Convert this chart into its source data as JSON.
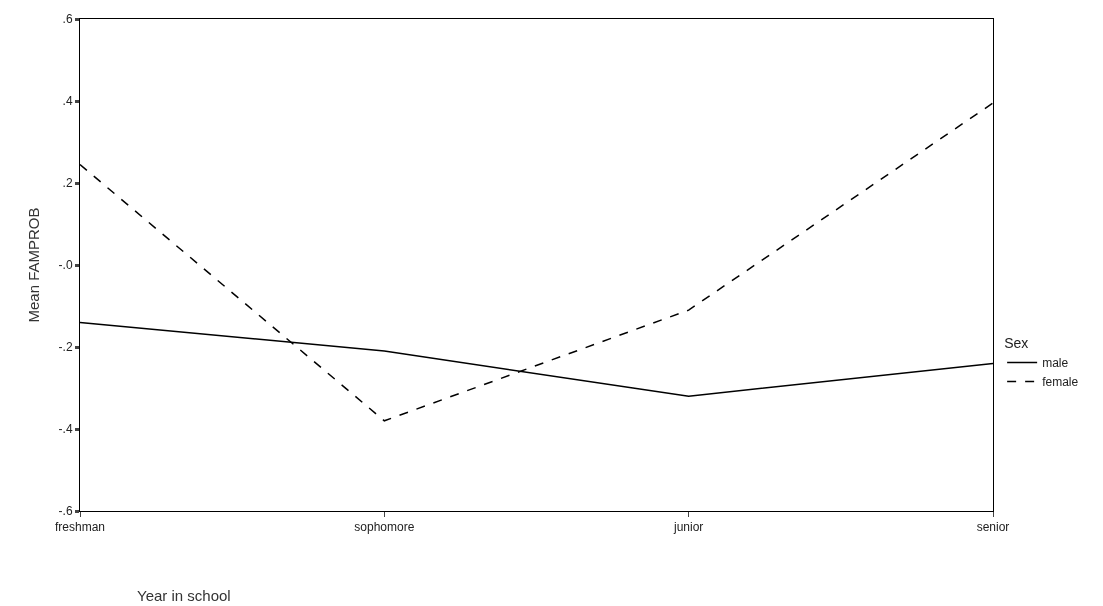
{
  "chart_data": {
    "type": "line",
    "xlabel": "Year in school",
    "ylabel": "Mean FAMPROB",
    "legend_title": "Sex",
    "categories": [
      "freshman",
      "sophomore",
      "junior",
      "senior"
    ],
    "series": [
      {
        "name": "male",
        "color": "#000000",
        "line_style": "solid",
        "values": [
          -0.14,
          -0.21,
          -0.32,
          -0.24
        ]
      },
      {
        "name": "female",
        "color": "#000000",
        "line_style": "dashed",
        "values": [
          0.245,
          -0.38,
          -0.11,
          0.395
        ]
      }
    ],
    "ylim": [
      -0.6,
      0.6
    ],
    "yticks": [
      {
        "value": 0.6,
        "label": ".6"
      },
      {
        "value": 0.4,
        "label": ".4"
      },
      {
        "value": 0.2,
        "label": ".2"
      },
      {
        "value": 0,
        "label": "-.0"
      },
      {
        "value": -0.2,
        "label": "-.2"
      },
      {
        "value": -0.4,
        "label": "-.4"
      },
      {
        "value": -0.6,
        "label": "-.6"
      }
    ],
    "legend": "right",
    "marker": "none"
  }
}
